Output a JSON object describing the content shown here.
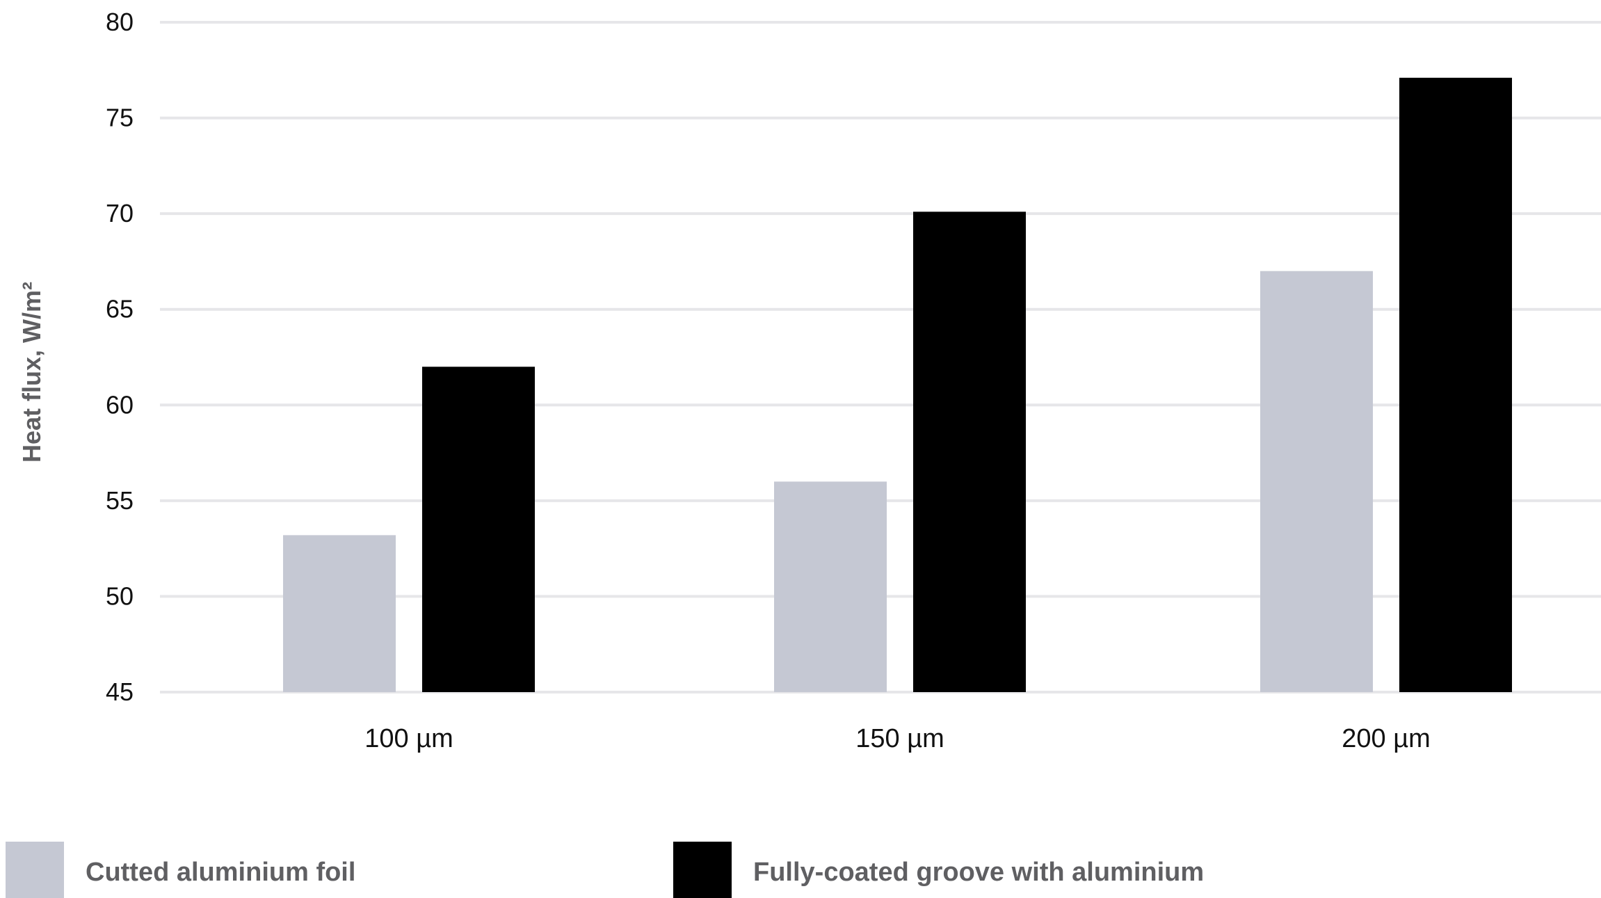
{
  "chart_data": {
    "type": "bar",
    "categories": [
      "100 µm",
      "150 µm",
      "200 µm"
    ],
    "series": [
      {
        "name": "Cutted aluminium foil",
        "values": [
          53.2,
          56,
          67
        ],
        "color": "#c5c8d3"
      },
      {
        "name": "Fully-coated groove with aluminium",
        "values": [
          62,
          70.1,
          77.1
        ],
        "color": "#000000"
      }
    ],
    "title": "",
    "xlabel": "",
    "ylabel": "Heat flux, W/m²",
    "ylim": [
      45,
      80
    ],
    "yticks": [
      45,
      50,
      55,
      60,
      65,
      70,
      75,
      80
    ],
    "grid": true,
    "grid_color": "#e6e6e9",
    "legend_position": "bottom"
  }
}
